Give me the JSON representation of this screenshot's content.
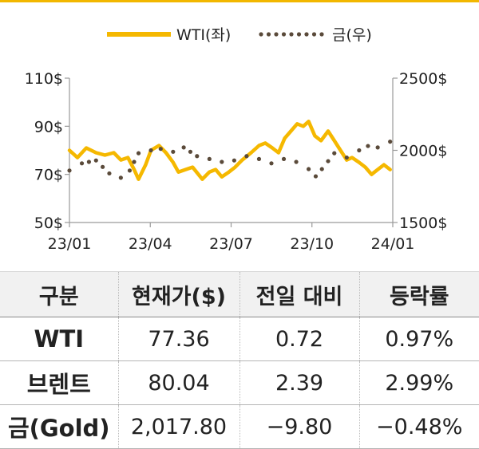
{
  "chart_data": {
    "type": "line",
    "x_tick_labels": [
      "23/01",
      "23/04",
      "23/07",
      "23/10",
      "24/01"
    ],
    "x_range": [
      "2023-01-01",
      "2024-01-01"
    ],
    "left_axis": {
      "ticks": [
        50,
        70,
        90,
        110
      ],
      "tick_labels": [
        "50$",
        "70$",
        "90$",
        "110$"
      ],
      "range": [
        50,
        110
      ]
    },
    "right_axis": {
      "ticks": [
        1500,
        2000,
        2500
      ],
      "tick_labels": [
        "1500$",
        "2000$",
        "2500$"
      ],
      "range": [
        1500,
        2500
      ]
    },
    "legend_placement": "top",
    "series": [
      {
        "name": "WTI(좌)",
        "axis": "left",
        "style": "solid",
        "color": "#f5b800",
        "x": [
          "2023-01-01",
          "2023-01-10",
          "2023-01-20",
          "2023-01-31",
          "2023-02-10",
          "2023-02-20",
          "2023-02-28",
          "2023-03-08",
          "2023-03-15",
          "2023-03-20",
          "2023-03-28",
          "2023-04-03",
          "2023-04-12",
          "2023-04-20",
          "2023-04-28",
          "2023-05-04",
          "2023-05-12",
          "2023-05-20",
          "2023-05-31",
          "2023-06-08",
          "2023-06-15",
          "2023-06-22",
          "2023-06-30",
          "2023-07-07",
          "2023-07-15",
          "2023-07-25",
          "2023-08-03",
          "2023-08-10",
          "2023-08-18",
          "2023-08-25",
          "2023-09-01",
          "2023-09-08",
          "2023-09-15",
          "2023-09-22",
          "2023-09-28",
          "2023-10-05",
          "2023-10-12",
          "2023-10-20",
          "2023-10-27",
          "2023-11-03",
          "2023-11-10",
          "2023-11-16",
          "2023-11-24",
          "2023-12-01",
          "2023-12-08",
          "2023-12-15",
          "2023-12-22",
          "2023-12-29"
        ],
        "values": [
          80,
          77,
          81,
          79,
          78,
          79,
          76,
          77,
          72,
          68,
          74,
          80,
          82,
          79,
          75,
          71,
          72,
          73,
          68,
          71,
          72,
          69,
          71,
          73,
          76,
          79,
          82,
          83,
          81,
          79,
          85,
          88,
          91,
          90,
          92,
          86,
          84,
          88,
          84,
          80,
          76,
          77,
          75,
          73,
          70,
          72,
          74,
          72
        ]
      },
      {
        "name": "금(우)",
        "axis": "right",
        "style": "dotted",
        "color": "#5a4a3a",
        "x": [
          "2023-01-01",
          "2023-01-15",
          "2023-01-31",
          "2023-02-15",
          "2023-02-28",
          "2023-03-10",
          "2023-03-20",
          "2023-04-03",
          "2023-04-14",
          "2023-04-28",
          "2023-05-10",
          "2023-05-25",
          "2023-06-08",
          "2023-06-22",
          "2023-07-06",
          "2023-07-20",
          "2023-08-03",
          "2023-08-17",
          "2023-08-31",
          "2023-09-14",
          "2023-09-28",
          "2023-10-06",
          "2023-10-13",
          "2023-10-27",
          "2023-11-10",
          "2023-11-24",
          "2023-12-04",
          "2023-12-15",
          "2023-12-29"
        ],
        "values": [
          1860,
          1910,
          1930,
          1840,
          1810,
          1860,
          1980,
          2000,
          2010,
          1990,
          2020,
          1960,
          1940,
          1920,
          1930,
          1960,
          1940,
          1910,
          1940,
          1920,
          1870,
          1820,
          1870,
          1980,
          1950,
          2000,
          2030,
          2020,
          2060
        ]
      }
    ]
  },
  "table": {
    "headers": [
      "구분",
      "현재가($)",
      "전일 대비",
      "등락률"
    ],
    "rows": [
      {
        "name": "WTI",
        "price": "77.36",
        "change": "0.72",
        "rate": "0.97%"
      },
      {
        "name": "브렌트",
        "price": "80.04",
        "change": "2.39",
        "rate": "2.99%"
      },
      {
        "name": "금(Gold)",
        "price": "2,017.80",
        "change": "−9.80",
        "rate": "−0.48%"
      }
    ]
  }
}
